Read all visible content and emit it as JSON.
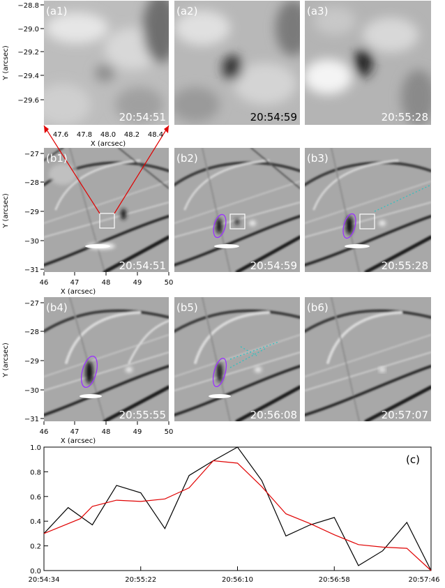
{
  "figure": {
    "a_panels": [
      {
        "label": "(a1)",
        "time": "20:54:51"
      },
      {
        "label": "(a2)",
        "time": "20:54:59"
      },
      {
        "label": "(a3)",
        "time": "20:55:28"
      }
    ],
    "a_axes": {
      "ylabel": "Y (arcsec)",
      "xlabel": "X (arcsec)",
      "yticks": [
        "−28.8",
        "−29.0",
        "−29.2",
        "−29.4",
        "−29.6"
      ],
      "xticks": [
        "47.6",
        "47.8",
        "48.0",
        "48.2",
        "48.4"
      ]
    },
    "b_panels_row1": [
      {
        "label": "(b1)",
        "time": "20:54:51"
      },
      {
        "label": "(b2)",
        "time": "20:54:59"
      },
      {
        "label": "(b3)",
        "time": "20:55:28"
      }
    ],
    "b_panels_row2": [
      {
        "label": "(b4)",
        "time": "20:55:55"
      },
      {
        "label": "(b5)",
        "time": "20:56:08"
      },
      {
        "label": "(b6)",
        "time": "20:57:07"
      }
    ],
    "b_axes": {
      "ylabel": "Y (arcsec)",
      "xlabel": "X (arcsec)",
      "yticks": [
        "−27",
        "−28",
        "−29",
        "−30",
        "−31"
      ],
      "xticks": [
        "46",
        "47",
        "48",
        "49",
        "50"
      ]
    },
    "colors": {
      "ellipse": "#9b30ff",
      "box": "#ffffff",
      "connector": "#e00000",
      "dotted": "#30c0c0"
    }
  },
  "chart_data": {
    "type": "line",
    "panel_label": "(c)",
    "xlabel": "",
    "ylabel": "",
    "x": [
      "20:54:34",
      "20:54:46",
      "20:54:58",
      "20:55:10",
      "20:55:22",
      "20:55:34",
      "20:55:46",
      "20:55:58",
      "20:56:10",
      "20:56:22",
      "20:56:34",
      "20:56:46",
      "20:56:58",
      "20:57:10",
      "20:57:22",
      "20:57:34",
      "20:57:46"
    ],
    "xtick_labels": [
      "20:54:34",
      "20:55:22",
      "20:56:10",
      "20:56:58",
      "20:57:46"
    ],
    "ylim": [
      0.0,
      1.0
    ],
    "ytick_labels": [
      "0.0",
      "0.2",
      "0.4",
      "0.6",
      "0.8",
      "1.0"
    ],
    "series": [
      {
        "color": "#000000",
        "values": [
          0.3,
          0.51,
          0.37,
          0.69,
          0.63,
          0.34,
          0.77,
          0.89,
          1.0,
          0.73,
          0.28,
          0.37,
          0.43,
          0.04,
          0.16,
          0.39,
          0.0
        ]
      },
      {
        "color": "#e00000",
        "x_index": [
          0,
          1.5,
          2.0,
          3.0,
          4.0,
          5.0,
          6.0,
          7.0,
          8.0,
          9.0,
          10.0,
          11.0,
          12.0,
          13.0,
          14.0,
          15.0,
          16.0
        ],
        "values": [
          0.3,
          0.42,
          0.52,
          0.57,
          0.56,
          0.58,
          0.67,
          0.89,
          0.87,
          0.68,
          0.46,
          0.38,
          0.29,
          0.21,
          0.19,
          0.18,
          0.0
        ]
      }
    ]
  }
}
